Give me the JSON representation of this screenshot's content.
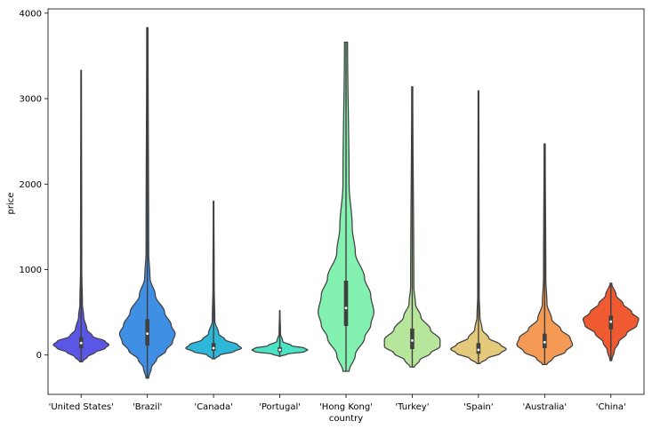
{
  "chart_data": {
    "type": "violin",
    "xlabel": "country",
    "ylabel": "price",
    "ylim": [
      -460,
      4050
    ],
    "yticks": [
      0,
      1000,
      2000,
      3000,
      4000
    ],
    "grid": false,
    "categories": [
      "'United States'",
      "'Brazil'",
      "'Canada'",
      "'Portugal'",
      "'Hong Kong'",
      "'Turkey'",
      "'Spain'",
      "'Australia'",
      "'China'"
    ],
    "colors": [
      "#5a57e6",
      "#3f8fe4",
      "#2eb7d8",
      "#4be2c6",
      "#83f2b1",
      "#b6e69b",
      "#e4c97a",
      "#f59a55",
      "#ef5a30"
    ],
    "violins": [
      {
        "category": "'United States'",
        "min": -80,
        "max": 3330,
        "q1": 80,
        "median": 140,
        "q3": 210,
        "profile": [
          [
            -80,
            0.02
          ],
          [
            -20,
            0.1
          ],
          [
            30,
            0.22
          ],
          [
            80,
            0.38
          ],
          [
            120,
            0.44
          ],
          [
            160,
            0.38
          ],
          [
            220,
            0.18
          ],
          [
            300,
            0.09
          ],
          [
            450,
            0.04
          ],
          [
            600,
            0.02
          ],
          [
            1000,
            0.01
          ],
          [
            3330,
            0.005
          ]
        ]
      },
      {
        "category": "'Brazil'",
        "min": -270,
        "max": 3830,
        "q1": 110,
        "median": 250,
        "q3": 420,
        "profile": [
          [
            -270,
            0.01
          ],
          [
            -150,
            0.03
          ],
          [
            -50,
            0.07
          ],
          [
            50,
            0.14
          ],
          [
            150,
            0.19
          ],
          [
            250,
            0.21
          ],
          [
            350,
            0.18
          ],
          [
            500,
            0.13
          ],
          [
            700,
            0.06
          ],
          [
            900,
            0.02
          ],
          [
            1200,
            0.01
          ],
          [
            3830,
            0.005
          ]
        ]
      },
      {
        "category": "'Canada'",
        "min": -45,
        "max": 1800,
        "q1": 50,
        "median": 80,
        "q3": 140,
        "profile": [
          [
            -45,
            0.02
          ],
          [
            0,
            0.1
          ],
          [
            40,
            0.32
          ],
          [
            80,
            0.44
          ],
          [
            120,
            0.38
          ],
          [
            180,
            0.18
          ],
          [
            250,
            0.08
          ],
          [
            400,
            0.02
          ],
          [
            800,
            0.01
          ],
          [
            1800,
            0.005
          ]
        ]
      },
      {
        "category": "'Portugal'",
        "min": -15,
        "max": 520,
        "q1": 35,
        "median": 60,
        "q3": 90,
        "profile": [
          [
            -15,
            0.02
          ],
          [
            10,
            0.2
          ],
          [
            40,
            0.68
          ],
          [
            60,
            0.76
          ],
          [
            80,
            0.68
          ],
          [
            110,
            0.32
          ],
          [
            160,
            0.08
          ],
          [
            250,
            0.02
          ],
          [
            520,
            0.005
          ]
        ]
      },
      {
        "category": "'Hong Kong'",
        "min": -190,
        "max": 3660,
        "q1": 340,
        "median": 550,
        "q3": 870,
        "profile": [
          [
            -190,
            0.01
          ],
          [
            0,
            0.03
          ],
          [
            200,
            0.06
          ],
          [
            350,
            0.08
          ],
          [
            500,
            0.09
          ],
          [
            700,
            0.08
          ],
          [
            900,
            0.06
          ],
          [
            1200,
            0.03
          ],
          [
            1500,
            0.02
          ],
          [
            2000,
            0.01
          ],
          [
            3660,
            0.005
          ]
        ]
      },
      {
        "category": "'Turkey'",
        "min": -140,
        "max": 3140,
        "q1": 70,
        "median": 170,
        "q3": 310,
        "profile": [
          [
            -140,
            0.02
          ],
          [
            -60,
            0.07
          ],
          [
            20,
            0.17
          ],
          [
            100,
            0.26
          ],
          [
            180,
            0.26
          ],
          [
            300,
            0.17
          ],
          [
            450,
            0.08
          ],
          [
            600,
            0.03
          ],
          [
            800,
            0.015
          ],
          [
            3140,
            0.005
          ]
        ]
      },
      {
        "category": "'Spain'",
        "min": -100,
        "max": 3090,
        "q1": 15,
        "median": 60,
        "q3": 140,
        "profile": [
          [
            -100,
            0.02
          ],
          [
            -40,
            0.12
          ],
          [
            20,
            0.3
          ],
          [
            70,
            0.38
          ],
          [
            120,
            0.3
          ],
          [
            200,
            0.14
          ],
          [
            300,
            0.05
          ],
          [
            450,
            0.02
          ],
          [
            700,
            0.01
          ],
          [
            3090,
            0.005
          ]
        ]
      },
      {
        "category": "'Australia'",
        "min": -110,
        "max": 2470,
        "q1": 80,
        "median": 150,
        "q3": 250,
        "profile": [
          [
            -110,
            0.02
          ],
          [
            -40,
            0.07
          ],
          [
            40,
            0.18
          ],
          [
            120,
            0.24
          ],
          [
            200,
            0.22
          ],
          [
            300,
            0.14
          ],
          [
            420,
            0.06
          ],
          [
            600,
            0.02
          ],
          [
            900,
            0.01
          ],
          [
            2470,
            0.005
          ]
        ]
      },
      {
        "category": "'China'",
        "min": -65,
        "max": 840,
        "q1": 300,
        "median": 390,
        "q3": 460,
        "profile": [
          [
            -65,
            0.01
          ],
          [
            50,
            0.04
          ],
          [
            150,
            0.09
          ],
          [
            250,
            0.18
          ],
          [
            350,
            0.3
          ],
          [
            420,
            0.32
          ],
          [
            500,
            0.24
          ],
          [
            600,
            0.14
          ],
          [
            700,
            0.06
          ],
          [
            840,
            0.01
          ]
        ]
      }
    ]
  }
}
